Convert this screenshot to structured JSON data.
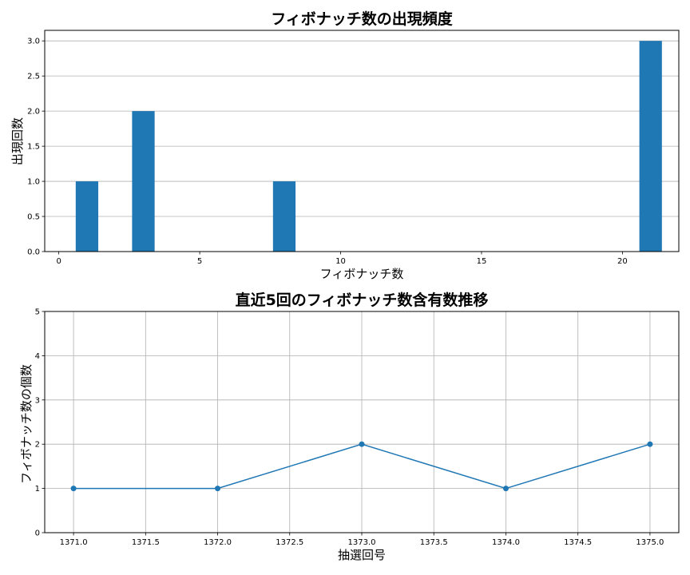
{
  "chart_data": [
    {
      "type": "bar",
      "title": "フィボナッチ数の出現頻度",
      "xlabel": "フィボナッチ数",
      "ylabel": "出現回数",
      "x": [
        1,
        3,
        8,
        21
      ],
      "values": [
        1,
        2,
        1,
        3
      ],
      "xlim": [
        -0.5,
        22
      ],
      "ylim": [
        0,
        3.15
      ],
      "xticks": [
        0,
        5,
        10,
        15,
        20
      ],
      "xtick_labels": [
        "0",
        "5",
        "10",
        "15",
        "20"
      ],
      "yticks": [
        0,
        0.5,
        1,
        1.5,
        2,
        2.5,
        3
      ],
      "ytick_labels": [
        "0.0",
        "0.5",
        "1.0",
        "1.5",
        "2.0",
        "2.5",
        "3.0"
      ],
      "grid": "y",
      "color": "#1f77b4"
    },
    {
      "type": "line",
      "title": "直近5回のフィボナッチ数含有数推移",
      "xlabel": "抽選回号",
      "ylabel": "フィボナッチ数の個数",
      "x": [
        1371,
        1372,
        1373,
        1374,
        1375
      ],
      "y": [
        1,
        1,
        2,
        1,
        2
      ],
      "xlim": [
        1370.8,
        1375.2
      ],
      "ylim": [
        0,
        5
      ],
      "xticks": [
        1371,
        1371.5,
        1372,
        1372.5,
        1373,
        1373.5,
        1374,
        1374.5,
        1375
      ],
      "xtick_labels": [
        "1371.0",
        "1371.5",
        "1372.0",
        "1372.5",
        "1373.0",
        "1373.5",
        "1374.0",
        "1374.5",
        "1375.0"
      ],
      "yticks": [
        0,
        1,
        2,
        3,
        4,
        5
      ],
      "ytick_labels": [
        "0",
        "1",
        "2",
        "3",
        "4",
        "5"
      ],
      "grid": "both",
      "marker": "circle",
      "color": "#1f77b4"
    }
  ]
}
